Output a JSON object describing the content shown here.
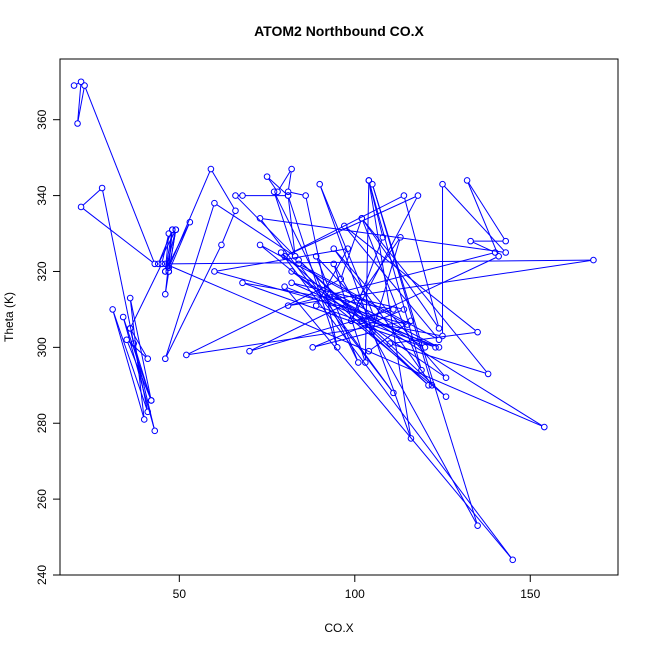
{
  "chart_data": {
    "type": "line",
    "title": "ATOM2 Northbound CO.X",
    "xlabel": "CO.X",
    "ylabel": "Theta (K)",
    "xlim": [
      16,
      175
    ],
    "ylim": [
      240,
      376
    ],
    "xticks": [
      50,
      100,
      150
    ],
    "yticks": [
      240,
      260,
      280,
      300,
      320,
      340,
      360
    ],
    "grid": false,
    "legend": "none",
    "line_color": "#0000ff",
    "marker": "open-circle",
    "series": [
      {
        "points": [
          [
            20,
            369
          ],
          [
            22,
            370
          ],
          [
            21,
            359
          ],
          [
            23,
            369
          ],
          [
            43,
            322
          ],
          [
            22,
            337
          ],
          [
            28,
            342
          ],
          [
            41,
            283
          ],
          [
            31,
            310
          ],
          [
            40,
            281
          ],
          [
            36,
            313
          ],
          [
            42,
            286
          ],
          [
            34,
            308
          ],
          [
            43,
            278
          ],
          [
            36,
            305
          ],
          [
            41,
            297
          ],
          [
            35,
            302
          ],
          [
            42,
            286
          ],
          [
            37,
            301
          ],
          [
            36,
            305
          ],
          [
            45,
            322
          ],
          [
            47,
            330
          ],
          [
            46,
            320
          ],
          [
            48,
            331
          ],
          [
            44,
            322
          ],
          [
            49,
            331
          ],
          [
            47,
            320
          ],
          [
            53,
            333
          ],
          [
            46,
            320
          ],
          [
            49,
            331
          ],
          [
            47,
            320
          ],
          [
            46,
            314
          ],
          [
            48,
            331
          ],
          [
            47,
            321
          ],
          [
            59,
            347
          ],
          [
            66,
            336
          ],
          [
            62,
            327
          ],
          [
            46,
            297
          ],
          [
            60,
            338
          ],
          [
            83,
            324
          ],
          [
            66,
            340
          ],
          [
            68,
            340
          ],
          [
            81,
            340
          ],
          [
            75,
            345
          ],
          [
            78,
            341
          ],
          [
            82,
            347
          ],
          [
            81,
            341
          ],
          [
            86,
            340
          ],
          [
            95,
            300
          ],
          [
            81,
            340
          ],
          [
            83,
            324
          ],
          [
            77,
            341
          ],
          [
            101,
            296
          ],
          [
            89,
            324
          ],
          [
            106,
            307
          ],
          [
            90,
            343
          ],
          [
            116,
            276
          ],
          [
            104,
            344
          ],
          [
            108,
            329
          ],
          [
            99,
            307
          ],
          [
            118,
            340
          ],
          [
            80,
            324
          ],
          [
            114,
            340
          ],
          [
            124,
            305
          ],
          [
            102,
            334
          ],
          [
            119,
            294
          ],
          [
            104,
            344
          ],
          [
            103,
            296
          ],
          [
            94,
            322
          ],
          [
            135,
            253
          ],
          [
            105,
            343
          ],
          [
            122,
            290
          ],
          [
            94,
            326
          ],
          [
            126,
            292
          ],
          [
            82,
            320
          ],
          [
            124,
            300
          ],
          [
            80,
            316
          ],
          [
            145,
            244
          ],
          [
            79,
            325
          ],
          [
            121,
            290
          ],
          [
            84,
            323
          ],
          [
            126,
            287
          ],
          [
            73,
            327
          ],
          [
            115,
            306
          ],
          [
            60,
            320
          ],
          [
            98,
            326
          ],
          [
            89,
            311
          ],
          [
            123,
            300
          ],
          [
            82,
            317
          ],
          [
            114,
            310
          ],
          [
            88,
            300
          ],
          [
            105,
            304
          ],
          [
            113,
            329
          ],
          [
            101,
            313
          ],
          [
            70,
            299
          ],
          [
            111,
            310
          ],
          [
            68,
            317
          ],
          [
            120,
            300
          ],
          [
            93,
            314
          ],
          [
            154,
            279
          ],
          [
            46,
            322
          ],
          [
            168,
            323
          ],
          [
            81,
            311
          ],
          [
            140,
            325
          ],
          [
            133,
            328
          ],
          [
            143,
            328
          ],
          [
            132,
            344
          ],
          [
            141,
            324
          ],
          [
            102,
            307
          ],
          [
            125,
            303
          ],
          [
            125,
            343
          ],
          [
            143,
            325
          ],
          [
            73,
            334
          ],
          [
            111,
            288
          ],
          [
            84,
            322
          ],
          [
            124,
            302
          ],
          [
            97,
            332
          ],
          [
            135,
            304
          ],
          [
            110,
            301
          ],
          [
            138,
            293
          ],
          [
            102,
            334
          ],
          [
            96,
            318
          ],
          [
            52,
            298
          ],
          [
            116,
            307
          ],
          [
            104,
            299
          ]
        ]
      }
    ]
  }
}
